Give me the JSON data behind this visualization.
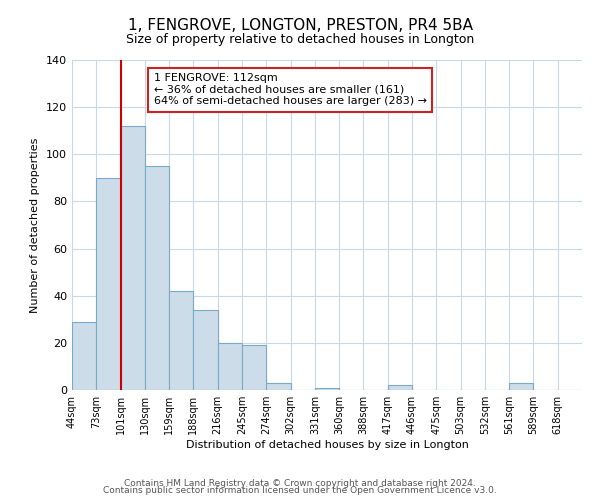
{
  "title": "1, FENGROVE, LONGTON, PRESTON, PR4 5BA",
  "subtitle": "Size of property relative to detached houses in Longton",
  "xlabel": "Distribution of detached houses by size in Longton",
  "ylabel": "Number of detached properties",
  "bar_labels": [
    "44sqm",
    "73sqm",
    "101sqm",
    "130sqm",
    "159sqm",
    "188sqm",
    "216sqm",
    "245sqm",
    "274sqm",
    "302sqm",
    "331sqm",
    "360sqm",
    "388sqm",
    "417sqm",
    "446sqm",
    "475sqm",
    "503sqm",
    "532sqm",
    "561sqm",
    "589sqm",
    "618sqm"
  ],
  "bar_heights": [
    29,
    90,
    112,
    95,
    42,
    34,
    20,
    19,
    3,
    0,
    1,
    0,
    0,
    2,
    0,
    0,
    0,
    0,
    3,
    0,
    0
  ],
  "bar_color": "#ccdce8",
  "bar_edge_color": "#7aaac8",
  "vline_x_index": 2,
  "vline_color": "#cc0000",
  "ylim": [
    0,
    140
  ],
  "yticks": [
    0,
    20,
    40,
    60,
    80,
    100,
    120,
    140
  ],
  "annotation_title": "1 FENGROVE: 112sqm",
  "annotation_line1": "← 36% of detached houses are smaller (161)",
  "annotation_line2": "64% of semi-detached houses are larger (283) →",
  "footer1": "Contains HM Land Registry data © Crown copyright and database right 2024.",
  "footer2": "Contains public sector information licensed under the Open Government Licence v3.0.",
  "background_color": "#ffffff",
  "grid_color": "#c8d8e8",
  "title_fontsize": 11,
  "subtitle_fontsize": 9,
  "axis_label_fontsize": 8,
  "tick_fontsize": 8,
  "xtick_fontsize": 7,
  "annotation_fontsize": 8,
  "footer_fontsize": 6.5
}
